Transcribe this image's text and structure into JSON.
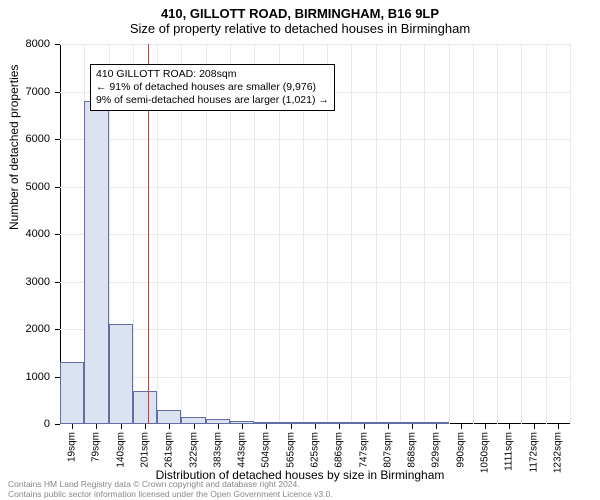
{
  "title": {
    "main": "410, GILLOTT ROAD, BIRMINGHAM, B16 9LP",
    "sub": "Size of property relative to detached houses in Birmingham"
  },
  "y_axis": {
    "label": "Number of detached properties",
    "min": 0,
    "max": 8000,
    "ticks": [
      0,
      1000,
      2000,
      3000,
      4000,
      5000,
      6000,
      7000,
      8000
    ]
  },
  "x_axis": {
    "label": "Distribution of detached houses by size in Birmingham",
    "tick_labels": [
      "19sqm",
      "79sqm",
      "140sqm",
      "201sqm",
      "261sqm",
      "322sqm",
      "383sqm",
      "443sqm",
      "504sqm",
      "565sqm",
      "625sqm",
      "686sqm",
      "747sqm",
      "807sqm",
      "868sqm",
      "929sqm",
      "990sqm",
      "1050sqm",
      "1111sqm",
      "1172sqm",
      "1232sqm"
    ]
  },
  "histogram": {
    "bar_count": 21,
    "values": [
      1300,
      6800,
      2100,
      700,
      300,
      150,
      100,
      70,
      50,
      40,
      30,
      15,
      12,
      10,
      8,
      8,
      0,
      0,
      0,
      0,
      0
    ],
    "bar_fill": "#dbe2f1",
    "bar_stroke": "#636fa4",
    "grid_color": "#e8e8ec",
    "background": "#ffffff"
  },
  "reference_line": {
    "x_value_sqm": 208,
    "color": "#e63434"
  },
  "annotation": {
    "line1": "410 GILLOTT ROAD: 208sqm",
    "line2": "← 91% of detached houses are smaller (9,976)",
    "line3": "9% of semi-detached houses are larger (1,021) →"
  },
  "footer": {
    "line1": "Contains HM Land Registry data © Crown copyright and database right 2024.",
    "line2": "Contains public sector information licensed under the Open Government Licence v3.0."
  }
}
